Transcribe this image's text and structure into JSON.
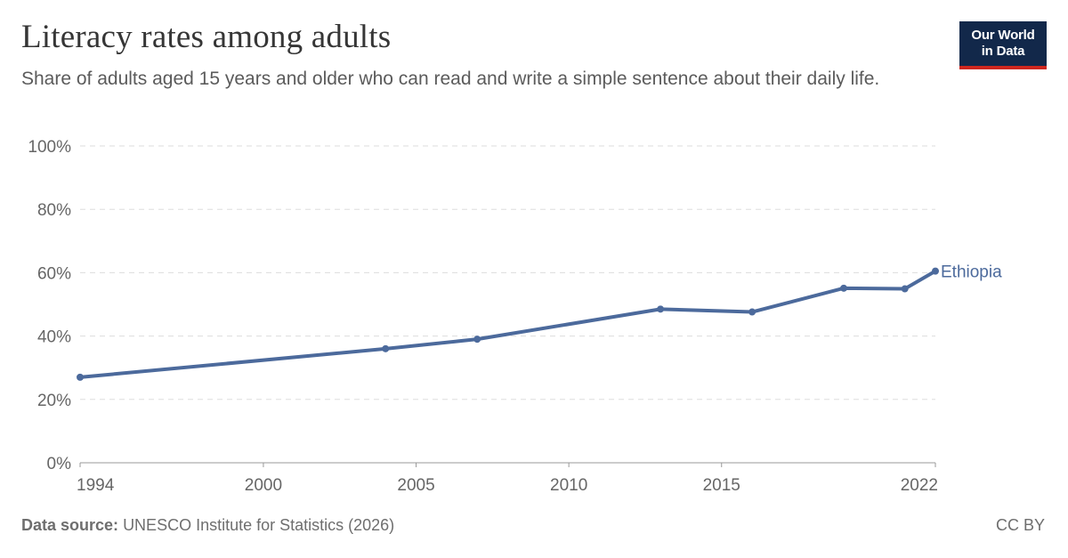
{
  "header": {
    "title": "Literacy rates among adults",
    "subtitle": "Share of adults aged 15 years and older who can read and write a simple sentence about their daily life."
  },
  "logo": {
    "line1": "Our World",
    "line2": "in Data"
  },
  "footer": {
    "source_label": "Data source:",
    "source_text": "UNESCO Institute for Statistics (2026)",
    "license": "CC BY"
  },
  "colors": {
    "series": "#4c6a9c",
    "grid": "#dddddd",
    "logo_bg": "#12284a",
    "logo_accent": "#ce261e"
  },
  "chart_data": {
    "type": "line",
    "title": "Literacy rates among adults",
    "xlabel": "",
    "ylabel": "",
    "xlim": [
      1994,
      2022
    ],
    "ylim": [
      0,
      100
    ],
    "y_ticks": [
      0,
      20,
      40,
      60,
      80,
      100
    ],
    "y_tick_labels": [
      "0%",
      "20%",
      "40%",
      "60%",
      "80%",
      "100%"
    ],
    "x_ticks": [
      1994,
      2000,
      2005,
      2010,
      2015,
      2022
    ],
    "x_tick_labels": [
      "1994",
      "2000",
      "2005",
      "2010",
      "2015",
      "2022"
    ],
    "grid": "horizontal dashed",
    "series": [
      {
        "name": "Ethiopia",
        "x": [
          1994,
          2004,
          2007,
          2013,
          2016,
          2019,
          2021,
          2022
        ],
        "y": [
          27.0,
          36.0,
          39.0,
          48.5,
          47.6,
          55.1,
          54.9,
          60.5
        ]
      }
    ]
  }
}
